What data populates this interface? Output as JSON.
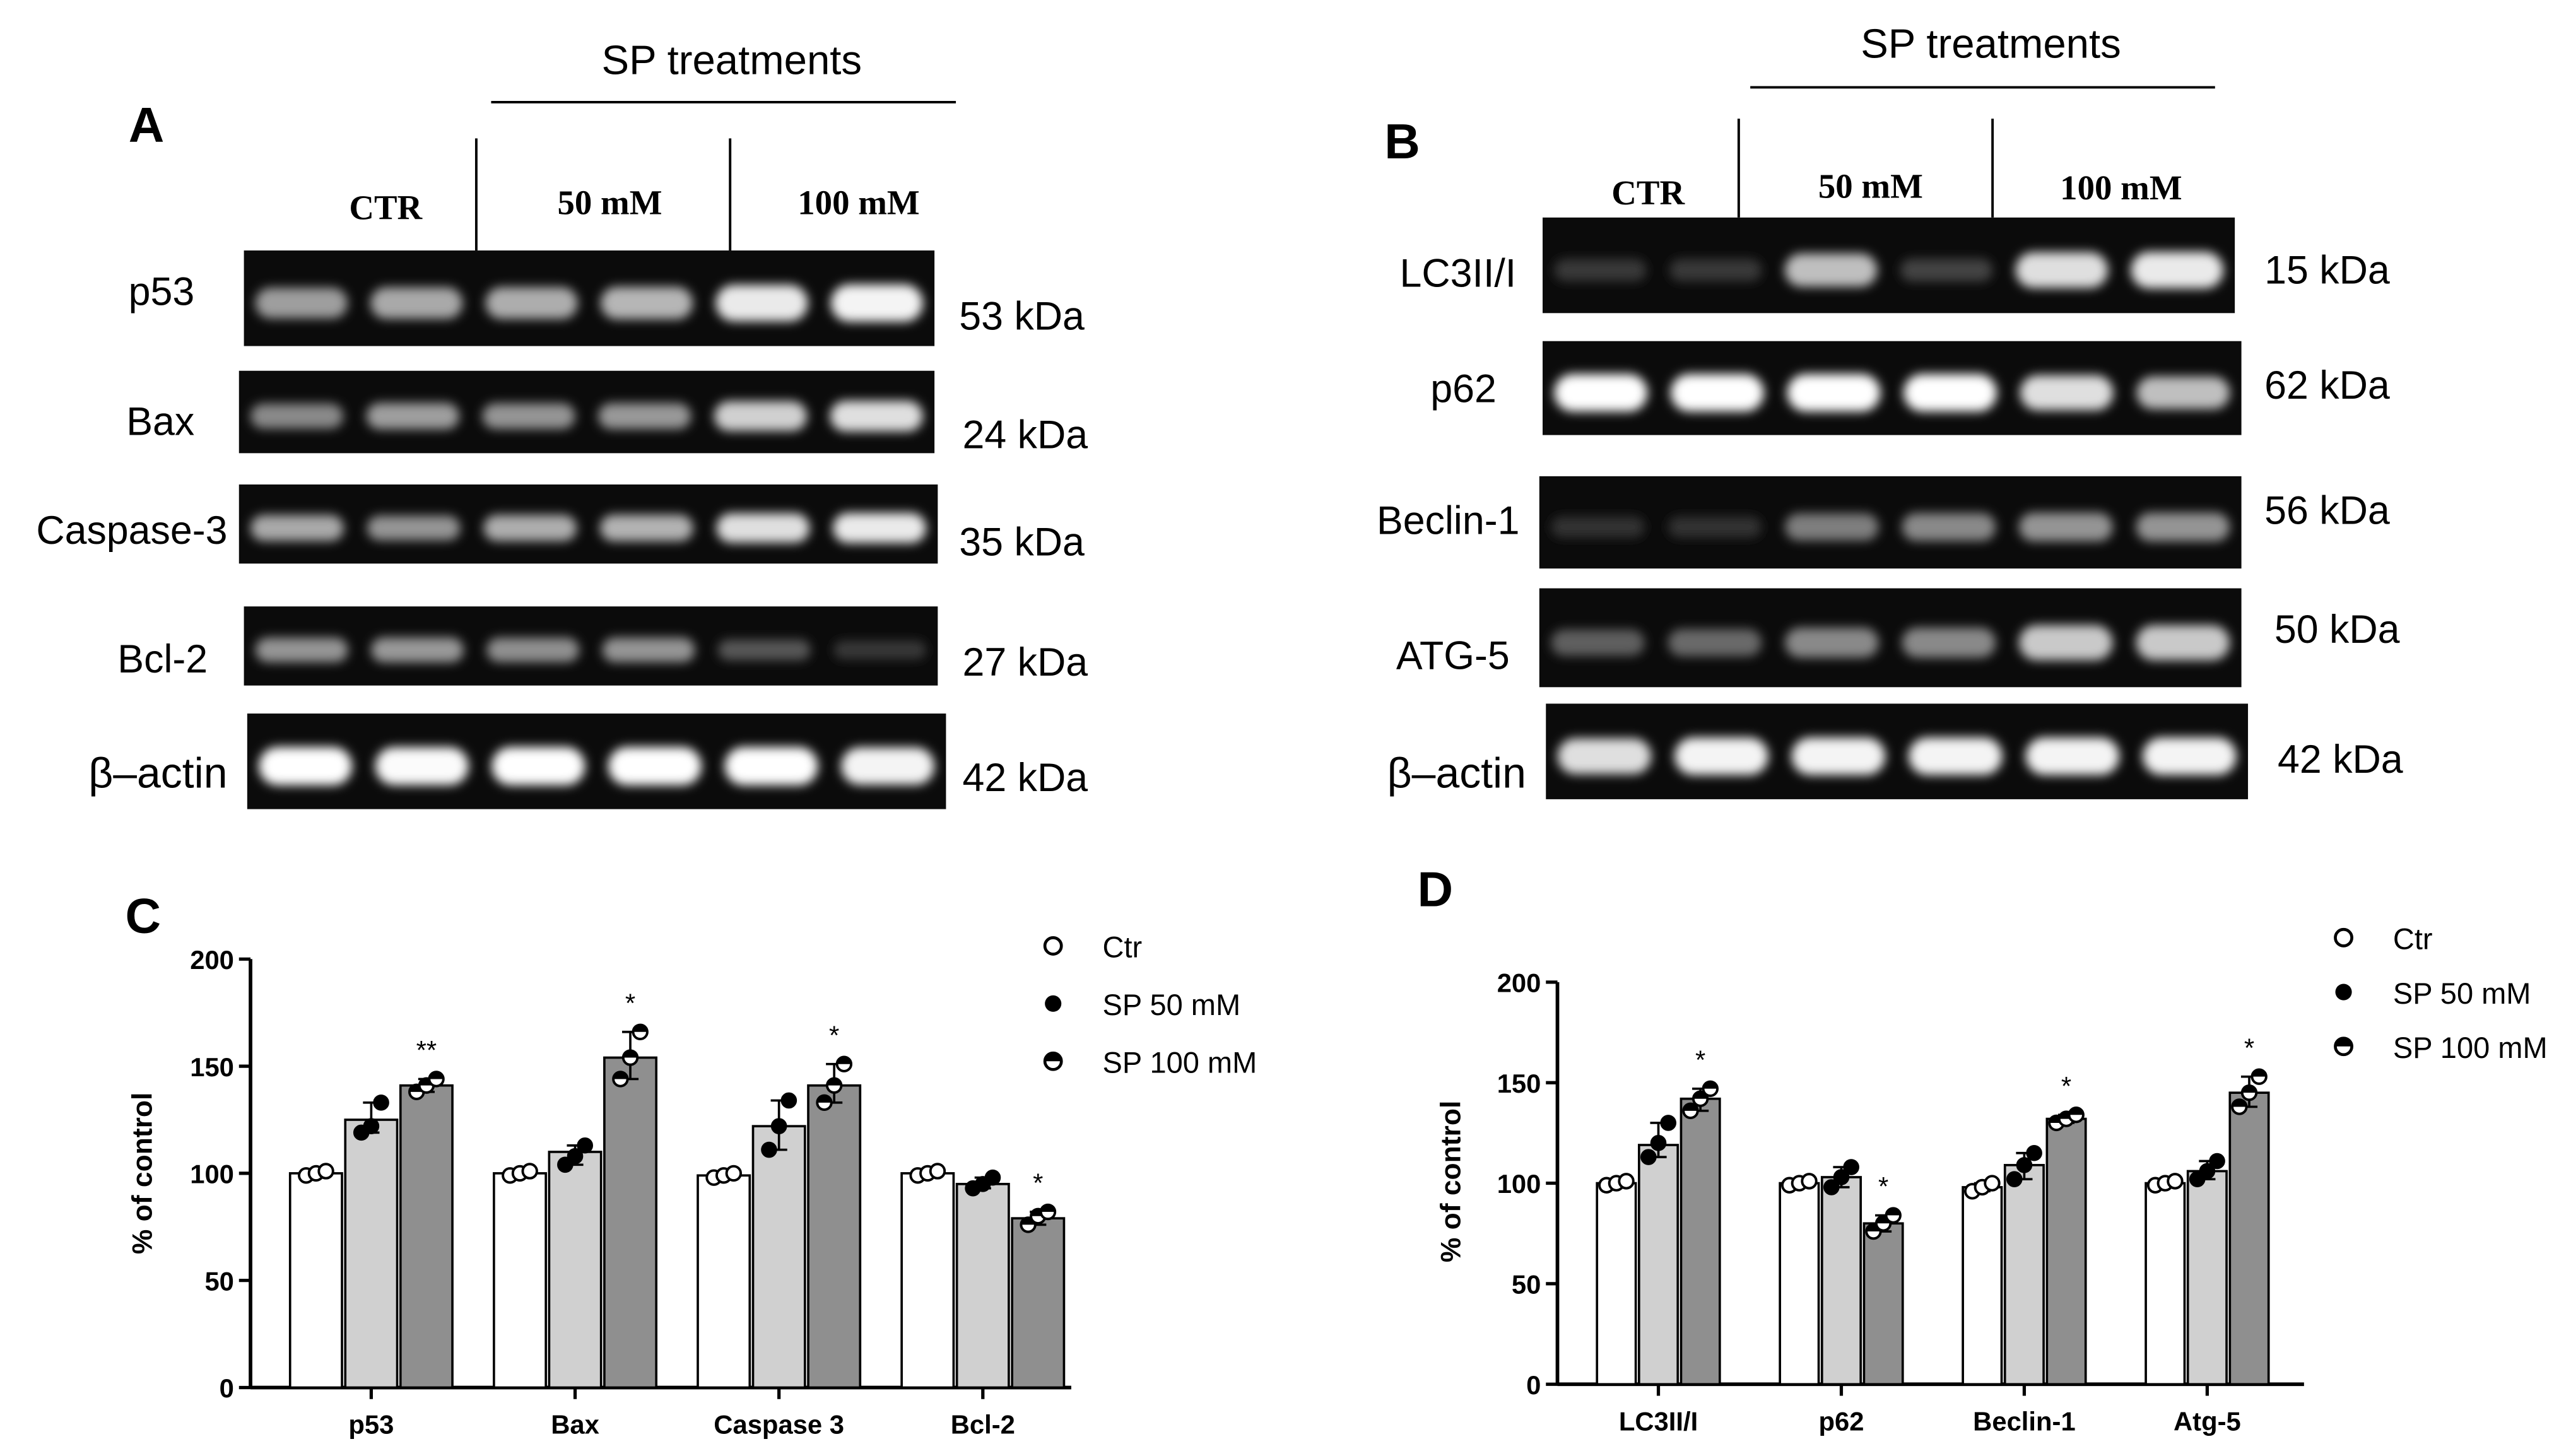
{
  "panels": {
    "A": {
      "letter": "A",
      "treatment_label": "SP treatments",
      "groups": [
        "CTR",
        "50 mM",
        "100 mM"
      ],
      "blots": [
        {
          "label": "p53",
          "kda": "53 kDa",
          "intensity": [
            0.55,
            0.6,
            0.62,
            0.66,
            0.9,
            0.95
          ]
        },
        {
          "label": "Bax",
          "kda": "24 kDa",
          "intensity": [
            0.45,
            0.55,
            0.5,
            0.52,
            0.78,
            0.85
          ]
        },
        {
          "label": "Caspase-3",
          "kda": "35 kDa",
          "intensity": [
            0.6,
            0.5,
            0.62,
            0.64,
            0.85,
            0.9
          ]
        },
        {
          "label": "Bcl-2",
          "kda": "27 kDa",
          "intensity": [
            0.5,
            0.52,
            0.48,
            0.5,
            0.22,
            0.08
          ]
        },
        {
          "label": "β–actin",
          "kda": "42 kDa",
          "intensity": [
            1,
            0.98,
            1,
            1,
            1,
            0.95
          ]
        }
      ]
    },
    "B": {
      "letter": "B",
      "treatment_label": "SP treatments",
      "groups": [
        "CTR",
        "50 mM",
        "100 mM"
      ],
      "blots": [
        {
          "label": "LC3II/I",
          "kda": "15 kDa",
          "intensity": [
            0.08,
            0.08,
            0.7,
            0.12,
            0.85,
            0.9
          ]
        },
        {
          "label": "p62",
          "kda": "62 kDa",
          "intensity": [
            1,
            1,
            1,
            1,
            0.85,
            0.7
          ]
        },
        {
          "label": "Beclin-1",
          "kda": "56 kDa",
          "intensity": [
            0.05,
            0.05,
            0.4,
            0.45,
            0.5,
            0.5
          ]
        },
        {
          "label": "ATG-5",
          "kda": "50 kDa",
          "intensity": [
            0.25,
            0.3,
            0.45,
            0.45,
            0.75,
            0.75
          ]
        },
        {
          "label": "β–actin",
          "kda": "42 kDa",
          "intensity": [
            0.85,
            0.95,
            0.95,
            0.95,
            0.95,
            0.95
          ]
        }
      ]
    }
  },
  "chart_data": [
    {
      "panel": "C",
      "type": "bar",
      "categories": [
        "p53",
        "Bax",
        "Caspase 3",
        "Bcl-2"
      ],
      "ylabel": "% of control",
      "ylim": [
        0,
        200
      ],
      "yticks": [
        0,
        50,
        100,
        150,
        200
      ],
      "series": [
        {
          "name": "Ctr",
          "values": [
            100,
            100,
            99,
            100
          ],
          "points": [
            [
              99,
              100,
              101
            ],
            [
              99,
              100,
              101
            ],
            [
              98,
              99,
              100
            ],
            [
              99,
              100,
              101
            ]
          ],
          "color": "#ffffff"
        },
        {
          "name": "SP 50 mM",
          "values": [
            125,
            110,
            122,
            95
          ],
          "points": [
            [
              119,
              122,
              133
            ],
            [
              104,
              108,
              113
            ],
            [
              111,
              122,
              134
            ],
            [
              93,
              95,
              98
            ]
          ],
          "color": "#d0d0d0"
        },
        {
          "name": "SP 100 mM",
          "values": [
            141,
            154,
            141,
            79
          ],
          "points": [
            [
              138,
              141,
              144
            ],
            [
              144,
              154,
              166
            ],
            [
              133,
              141,
              151
            ],
            [
              76,
              80,
              82
            ]
          ],
          "color": "#8f8f8f"
        }
      ],
      "significance": [
        {
          "category": "p53",
          "series": "SP 100 mM",
          "mark": "**"
        },
        {
          "category": "Bax",
          "series": "SP 100 mM",
          "mark": "*"
        },
        {
          "category": "Caspase 3",
          "series": "SP 100 mM",
          "mark": "*"
        },
        {
          "category": "Bcl-2",
          "series": "SP 100 mM",
          "mark": "*"
        }
      ],
      "legend": "top-right"
    },
    {
      "panel": "D",
      "type": "bar",
      "categories": [
        "LC3II/I",
        "p62",
        "Beclin-1",
        "Atg-5"
      ],
      "ylabel": "% of control",
      "ylim": [
        0,
        200
      ],
      "yticks": [
        0,
        50,
        100,
        150,
        200
      ],
      "series": [
        {
          "name": "Ctr",
          "values": [
            100,
            100,
            98,
            100
          ],
          "points": [
            [
              99,
              100,
              101
            ],
            [
              99,
              100,
              101
            ],
            [
              96,
              98,
              100
            ],
            [
              99,
              100,
              101
            ]
          ],
          "color": "#ffffff"
        },
        {
          "name": "SP 50 mM",
          "values": [
            119,
            103,
            109,
            106
          ],
          "points": [
            [
              113,
              120,
              130
            ],
            [
              98,
              103,
              108
            ],
            [
              102,
              109,
              115
            ],
            [
              102,
              106,
              111
            ]
          ],
          "color": "#d0d0d0"
        },
        {
          "name": "SP 100 mM",
          "values": [
            142,
            80,
            132,
            145
          ],
          "points": [
            [
              136,
              142,
              147
            ],
            [
              76,
              80,
              84
            ],
            [
              130,
              132,
              134
            ],
            [
              138,
              145,
              153
            ]
          ],
          "color": "#8f8f8f"
        }
      ],
      "significance": [
        {
          "category": "LC3II/I",
          "series": "SP 100 mM",
          "mark": "*"
        },
        {
          "category": "p62",
          "series": "SP 100 mM",
          "mark": "*"
        },
        {
          "category": "Beclin-1",
          "series": "SP 100 mM",
          "mark": "*"
        },
        {
          "category": "Atg-5",
          "series": "SP 100 mM",
          "mark": "*"
        }
      ],
      "legend": "top-right"
    }
  ]
}
